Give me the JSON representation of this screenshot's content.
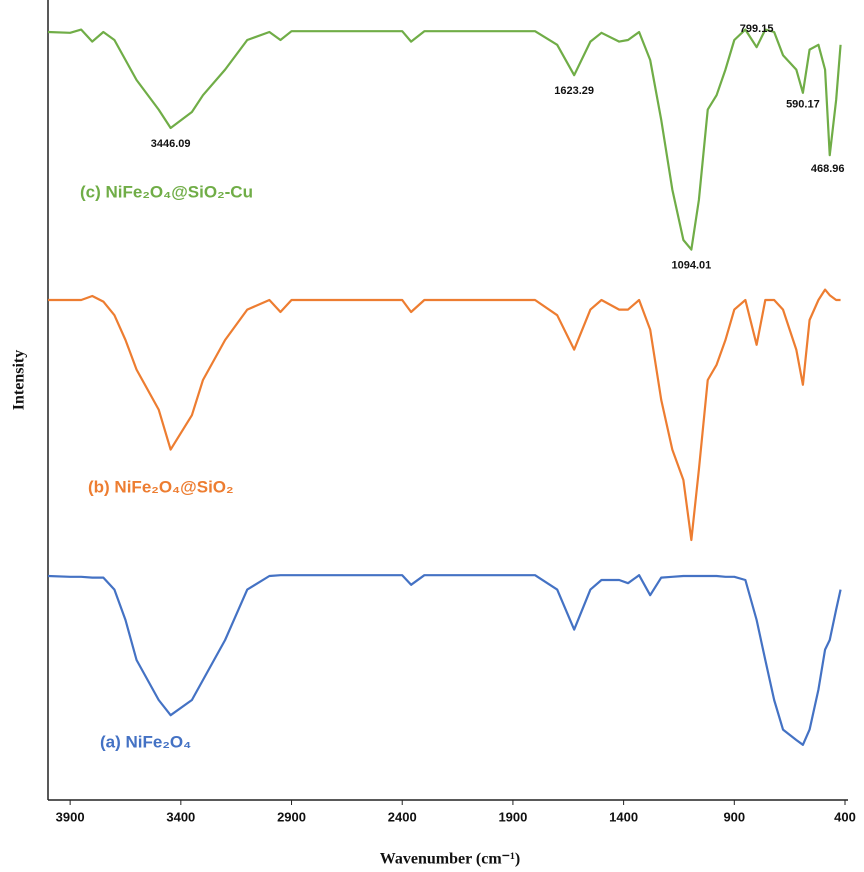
{
  "chart_data": {
    "type": "line",
    "xlabel": "Wavenumber (cm⁻¹)",
    "ylabel": "Intensity",
    "xlim": [
      4000,
      400
    ],
    "ylim": [
      0,
      100
    ],
    "xticks": [
      3900,
      3400,
      2900,
      2400,
      1900,
      1400,
      900,
      400
    ],
    "x": [
      4000,
      3900,
      3850,
      3800,
      3750,
      3700,
      3650,
      3600,
      3500,
      3446.09,
      3350,
      3300,
      3200,
      3100,
      3000,
      2950,
      2900,
      2400,
      2360,
      2300,
      1800,
      1700,
      1623.29,
      1550,
      1500,
      1420,
      1380,
      1330,
      1280,
      1230,
      1180,
      1130,
      1094.01,
      1060,
      1020,
      980,
      940,
      900,
      850,
      799.15,
      760,
      720,
      680,
      620,
      590.17,
      560,
      520,
      490,
      468.96,
      440,
      420
    ],
    "series": [
      {
        "name": "(a) NiFe₂O₄",
        "color": "#4472c4",
        "values": [
          28,
          27.9,
          27.9,
          27.8,
          27.8,
          26.3,
          22.5,
          17.5,
          12.5,
          10.6,
          12.5,
          15,
          20,
          26.3,
          28,
          28.1,
          28.1,
          28.1,
          26.9,
          28.1,
          28.1,
          26.3,
          21.3,
          26.3,
          27.5,
          27.5,
          27.1,
          28.1,
          25.6,
          27.8,
          27.9,
          28,
          28,
          28,
          28,
          28,
          27.9,
          27.9,
          27.5,
          22.5,
          17.5,
          12.5,
          8.8,
          7.5,
          6.9,
          8.8,
          13.8,
          18.8,
          20,
          23.8,
          26.3
        ]
      },
      {
        "name": "(b) NiFe₂O₄@SiO₂",
        "color": "#ed7d31",
        "values": [
          62.5,
          62.5,
          62.5,
          63,
          62.3,
          60.6,
          57.5,
          53.8,
          48.8,
          43.8,
          48.1,
          52.5,
          57.5,
          61.3,
          62.5,
          61,
          62.5,
          62.5,
          61,
          62.5,
          62.5,
          60.6,
          56.3,
          61.3,
          62.5,
          61.3,
          61.3,
          62.5,
          58.8,
          50,
          43.8,
          40,
          32.5,
          41.3,
          52.5,
          54.4,
          57.5,
          61.3,
          62.5,
          56.9,
          62.5,
          62.5,
          61.3,
          56.3,
          51.9,
          60,
          62.5,
          63.8,
          63.1,
          62.5,
          62.5
        ]
      },
      {
        "name": "(c) NiFe₂O₄@SiO₂-Cu",
        "color": "#70ad47",
        "values": [
          96,
          95.9,
          96.3,
          94.8,
          96,
          95,
          92.5,
          90,
          86.3,
          84,
          86,
          88.1,
          91.3,
          95,
          96,
          95,
          96.1,
          96.1,
          94.8,
          96.1,
          96.1,
          94.4,
          90.6,
          94.8,
          95.9,
          94.8,
          95,
          96,
          92.5,
          85,
          76.3,
          70,
          68.8,
          75,
          86.3,
          88.1,
          91.3,
          95,
          96.3,
          94.1,
          96.3,
          96,
          93.1,
          91.3,
          88.4,
          93.8,
          94.4,
          91.3,
          80.6,
          87.5,
          94.4
        ]
      }
    ],
    "peak_labels": [
      3446.09,
      1623.29,
      1094.01,
      799.15,
      590.17,
      468.96
    ]
  }
}
